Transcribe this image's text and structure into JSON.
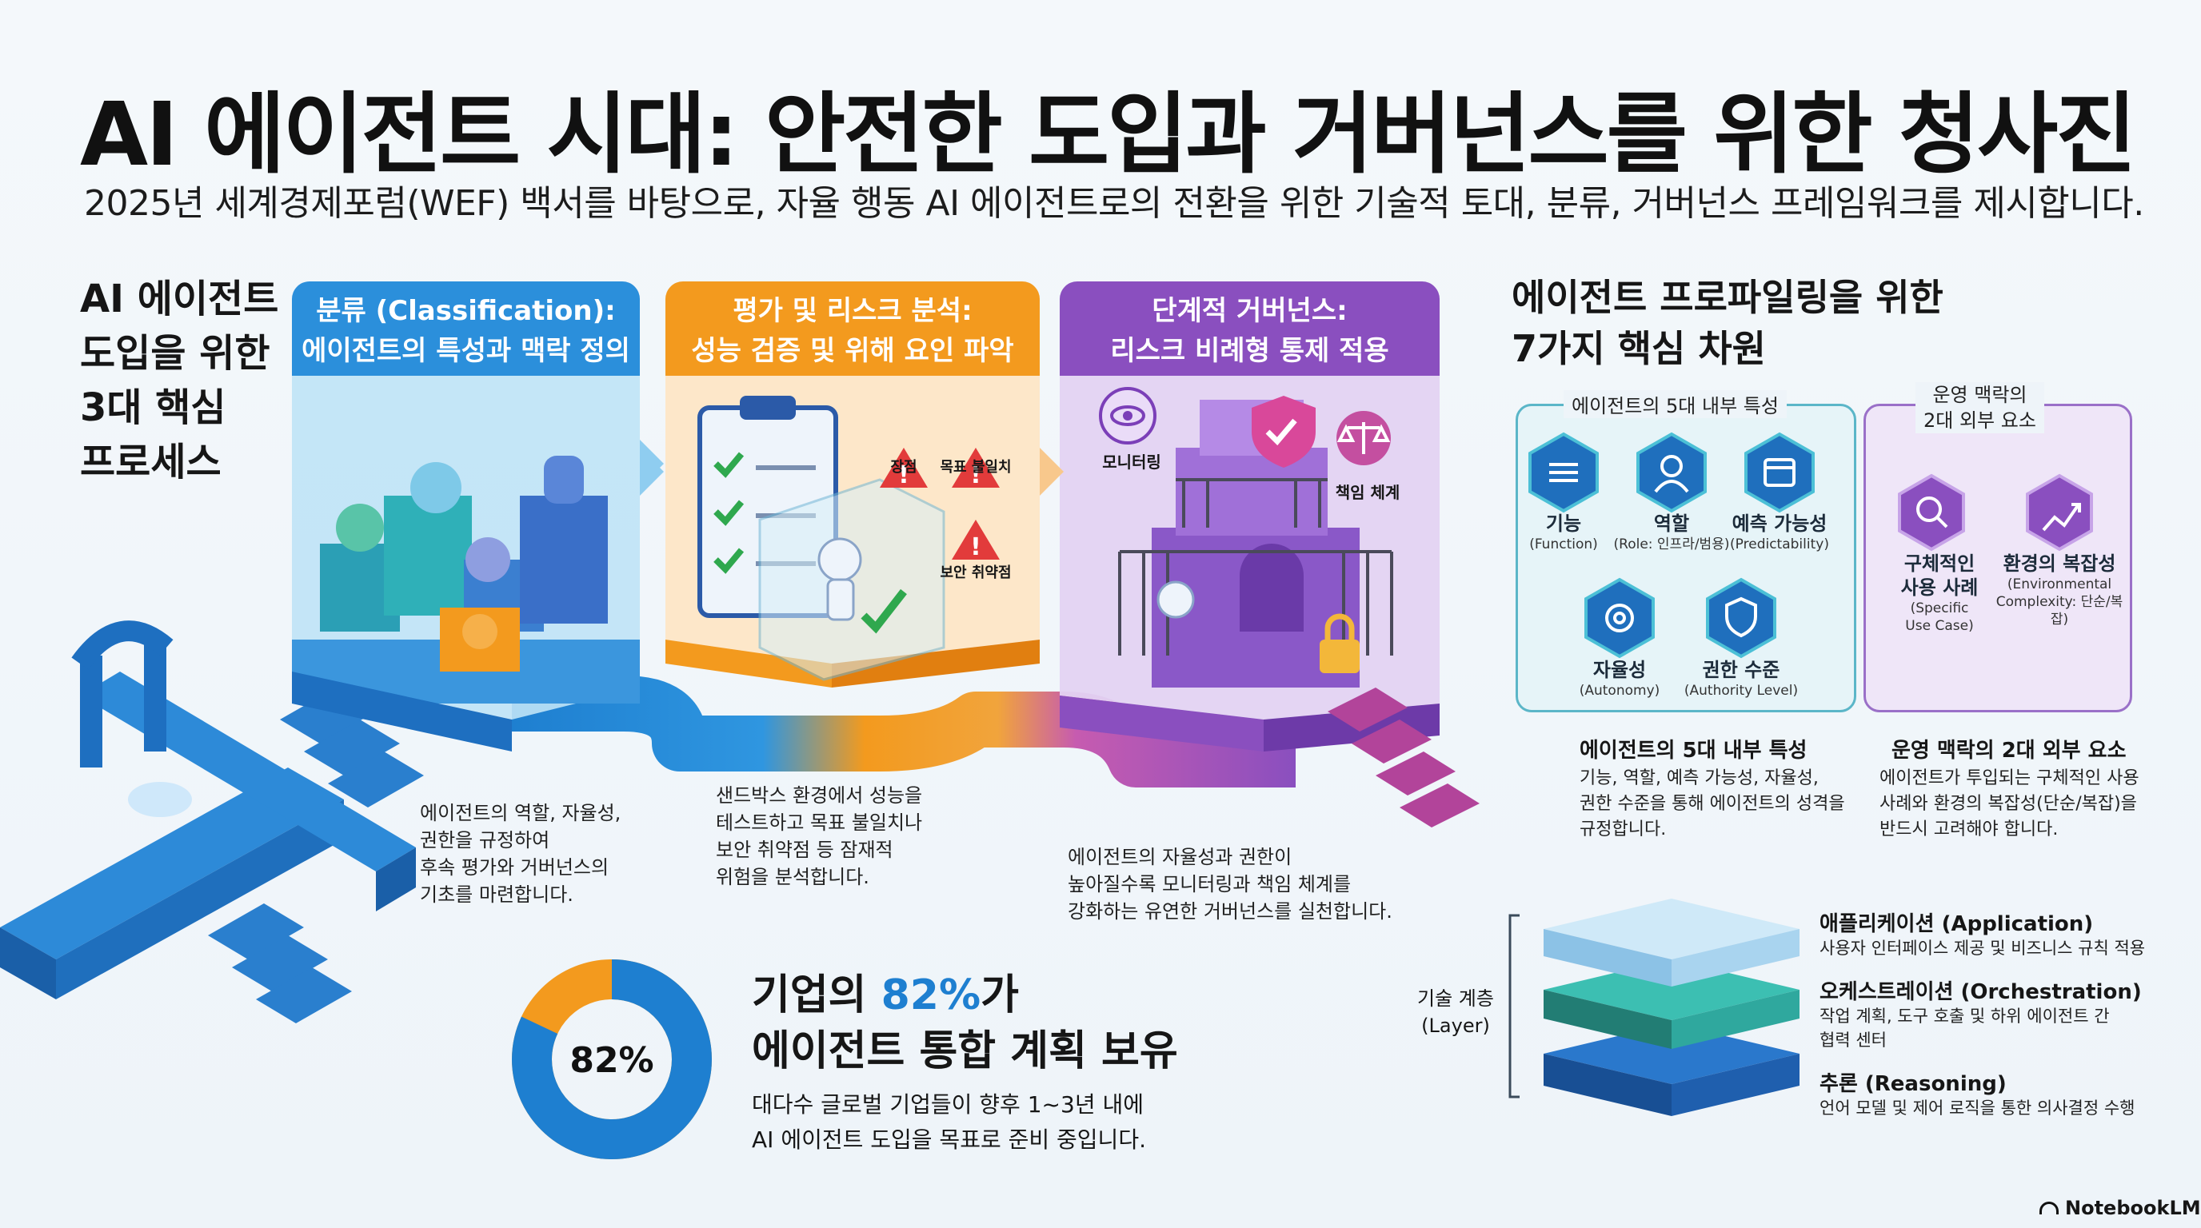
{
  "title": "AI 에이전트 시대: 안전한 도입과 거버넌스를 위한 청사진",
  "subtitle": "2025년 세계경제포럼(WEF) 백서를 바탕으로, 자율 행동 AI 에이전트로의 전환을 위한 기술적 토대, 분류, 거버넌스 프레임워크를 제시합니다.",
  "left_heading": [
    "AI 에이전트",
    "도입을 위한",
    "3대 핵심",
    "프로세스"
  ],
  "stages": [
    {
      "title_line1": "분류 (Classification):",
      "title_line2": "에이전트의 특성과 맥락 정의",
      "desc": [
        "에이전트의 역할, 자율성,",
        "권한을 규정하여",
        "후속 평가와 거버넌스의",
        "기초를 마련합니다."
      ]
    },
    {
      "title_line1": "평가 및 리스크 분석:",
      "title_line2": "성능 검증 및 위해 요인 파악",
      "desc": [
        "샌드박스 환경에서 성능을",
        "테스트하고 목표 불일치나",
        "보안 취약점 등 잠재적",
        "위험을 분석합니다."
      ],
      "risks": [
        "장점",
        "목표 불일치",
        "보안 취약점"
      ]
    },
    {
      "title_line1": "단계적 거버넌스:",
      "title_line2": "리스크 비례형 통제 적용",
      "desc": [
        "에이전트의 자율성과 권한이",
        "높아질수록 모니터링과 책임 체계를",
        "강화하는 유연한 거버넌스를 실천합니다."
      ],
      "icons": [
        "모니터링",
        "책임 체계"
      ]
    }
  ],
  "stat": {
    "value": "82%",
    "percent": 82,
    "title_prefix": "기업의 ",
    "title_highlight": "82%",
    "title_suffix": "가",
    "title_line2": "에이전트 통합 계획 보유",
    "desc": [
      "대다수 글로벌 기업들이 향후 1~3년 내에",
      "AI 에이전트 도입을 목표로 준비 중입니다."
    ]
  },
  "right_heading": [
    "에이전트 프로파일링을 위한",
    "7가지 핵심 차원"
  ],
  "internal_group": {
    "label": "에이전트의 5대 내부 특성",
    "items": [
      {
        "name": "기능",
        "en": "(Function)",
        "icon": "function-icon"
      },
      {
        "name": "역할",
        "en": "(Role: 인프라/범용)",
        "icon": "role-icon"
      },
      {
        "name": "예측 가능성",
        "en": "(Predictability)",
        "icon": "predictability-icon"
      },
      {
        "name": "자율성",
        "en": "(Autonomy)",
        "icon": "autonomy-icon"
      },
      {
        "name": "권한 수준",
        "en": "(Authority Level)",
        "icon": "authority-icon"
      }
    ],
    "sub_title": "에이전트의 5대 내부 특성",
    "sub_desc": [
      "기능, 역할, 예측 가능성, 자율성,",
      "권한 수준을 통해 에이전트의 성격을",
      "규정합니다."
    ]
  },
  "external_group": {
    "label_line1": "운영 맥락의",
    "label_line2": "2대 외부 요소",
    "items": [
      {
        "name": "구체적인",
        "name2": "사용 사례",
        "en": "(Specific",
        "en2": "Use Case)",
        "icon": "use-case-icon"
      },
      {
        "name": "환경의 복잡성",
        "name2": "",
        "en": "(Environmental",
        "en2": "Complexity: 단순/복잡)",
        "icon": "complexity-icon"
      }
    ],
    "sub_title": "운영 맥락의 2대 외부 요소",
    "sub_desc": [
      "에이전트가 투입되는 구체적인 사용",
      "사례와 환경의 복잡성(단순/복잡)을",
      "반드시 고려해야 합니다."
    ]
  },
  "layers": {
    "label_line1": "기술 계층",
    "label_line2": "(Layer)",
    "items": [
      {
        "title": "애플리케이션 (Application)",
        "desc": [
          "사용자 인터페이스 제공 및 비즈니스 규칙 적용"
        ],
        "color": "#a9d4ef"
      },
      {
        "title": "오케스트레이션 (Orchestration)",
        "desc": [
          "작업 계획, 도구 호출 및 하위 에이전트 간",
          "협력 센터"
        ],
        "color": "#2fa89e"
      },
      {
        "title": "추론 (Reasoning)",
        "desc": [
          "언어 모델 및 제어 로직을 통한 의사결정 수행"
        ],
        "color": "#1f5fae"
      }
    ]
  },
  "brand": "NotebookLM",
  "colors": {
    "blue": "#1e7fd0",
    "orange": "#f39a1e",
    "purple": "#8a4fbf",
    "teal": "#2fa89e",
    "navy": "#1f5fae"
  }
}
